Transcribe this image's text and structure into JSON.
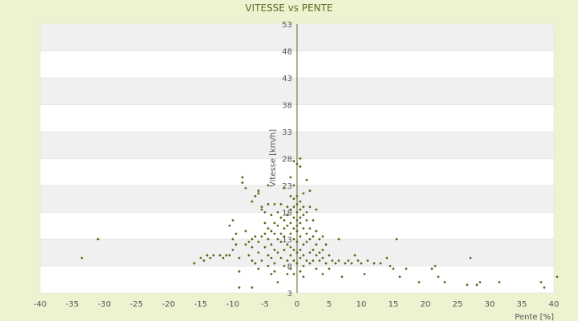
{
  "chart_data": {
    "type": "scatter",
    "title": "VITESSE vs PENTE",
    "xlabel": "Pente [%]",
    "ylabel": "Vitesse [km/h]",
    "xlim": [
      -40,
      40
    ],
    "ylim": [
      3,
      53
    ],
    "x_ticks": [
      -40,
      -35,
      -30,
      -25,
      -20,
      -15,
      -10,
      -5,
      0,
      5,
      10,
      15,
      20,
      25,
      30,
      35,
      40
    ],
    "y_ticks": [
      3,
      8,
      13,
      18,
      23,
      28,
      33,
      38,
      43,
      48,
      53
    ],
    "grid": "horizontal bands",
    "colors": {
      "page_background": "#eef2d0",
      "band_light": "#ffffff",
      "band_dark": "#f0f0f0",
      "point": "#5a6a1e",
      "axis": "#5a6a1e",
      "title": "#5a6a1e"
    },
    "points": [
      [
        -33.5,
        9.5
      ],
      [
        -31,
        13
      ],
      [
        -16,
        8.5
      ],
      [
        -15,
        9.5
      ],
      [
        -14.5,
        9
      ],
      [
        -14,
        10
      ],
      [
        -13.5,
        9.5
      ],
      [
        -13,
        10
      ],
      [
        -12,
        10
      ],
      [
        -11.5,
        9.5
      ],
      [
        -11,
        10
      ],
      [
        -10.5,
        10
      ],
      [
        -10.5,
        15.5
      ],
      [
        -10,
        16.5
      ],
      [
        -10,
        13
      ],
      [
        -10,
        11
      ],
      [
        -9.5,
        12
      ],
      [
        -9.5,
        14
      ],
      [
        -9,
        9.5
      ],
      [
        -9,
        7
      ],
      [
        -9,
        4
      ],
      [
        -8.5,
        24.5
      ],
      [
        -8.5,
        23.5
      ],
      [
        -8,
        22.5
      ],
      [
        -8,
        12
      ],
      [
        -8,
        14.5
      ],
      [
        -7.5,
        10
      ],
      [
        -7.5,
        12.5
      ],
      [
        -7,
        20
      ],
      [
        -7,
        13
      ],
      [
        -7,
        11.5
      ],
      [
        -7,
        9
      ],
      [
        -7,
        4
      ],
      [
        -6.5,
        21
      ],
      [
        -6.5,
        13.5
      ],
      [
        -6.5,
        8.5
      ],
      [
        -6,
        22
      ],
      [
        -6,
        21.5
      ],
      [
        -6,
        12.5
      ],
      [
        -6,
        10.5
      ],
      [
        -6,
        7.5
      ],
      [
        -5.5,
        19
      ],
      [
        -5.5,
        18.5
      ],
      [
        -5.5,
        13.5
      ],
      [
        -5.5,
        9
      ],
      [
        -5,
        18
      ],
      [
        -5,
        16
      ],
      [
        -5,
        14
      ],
      [
        -5,
        11.5
      ],
      [
        -4.5,
        23
      ],
      [
        -4.5,
        19.5
      ],
      [
        -4.5,
        15
      ],
      [
        -4.5,
        13
      ],
      [
        -4.5,
        10
      ],
      [
        -4.5,
        8
      ],
      [
        -4,
        17.5
      ],
      [
        -4,
        14.5
      ],
      [
        -4,
        12
      ],
      [
        -4,
        9.5
      ],
      [
        -4,
        6.5
      ],
      [
        -3.5,
        19.5
      ],
      [
        -3.5,
        16
      ],
      [
        -3.5,
        14
      ],
      [
        -3.5,
        11
      ],
      [
        -3.5,
        8.5
      ],
      [
        -3.5,
        7
      ],
      [
        -3,
        18
      ],
      [
        -3,
        15.5
      ],
      [
        -3,
        13
      ],
      [
        -3,
        10.5
      ],
      [
        -3,
        5
      ],
      [
        -2.5,
        19.5
      ],
      [
        -2.5,
        17
      ],
      [
        -2.5,
        14
      ],
      [
        -2.5,
        12.5
      ],
      [
        -2.5,
        9.5
      ],
      [
        -2,
        22.5
      ],
      [
        -2,
        16.5
      ],
      [
        -2,
        15
      ],
      [
        -2,
        13.5
      ],
      [
        -2,
        11
      ],
      [
        -2,
        8
      ],
      [
        -1.5,
        19
      ],
      [
        -1.5,
        17.5
      ],
      [
        -1.5,
        15.5
      ],
      [
        -1.5,
        12
      ],
      [
        -1.5,
        9
      ],
      [
        -1.5,
        6.5
      ],
      [
        -1,
        24.5
      ],
      [
        -1,
        21
      ],
      [
        -1,
        18.5
      ],
      [
        -1,
        16
      ],
      [
        -1,
        14
      ],
      [
        -1,
        11.5
      ],
      [
        -1,
        10
      ],
      [
        -1,
        7.5
      ],
      [
        -0.5,
        27.5
      ],
      [
        -0.5,
        23
      ],
      [
        -0.5,
        20.5
      ],
      [
        -0.5,
        19
      ],
      [
        -0.5,
        17
      ],
      [
        -0.5,
        15
      ],
      [
        -0.5,
        13
      ],
      [
        -0.5,
        11
      ],
      [
        -0.5,
        9
      ],
      [
        -0.5,
        6.5
      ],
      [
        0,
        27
      ],
      [
        0,
        21
      ],
      [
        0,
        19.5
      ],
      [
        0,
        18
      ],
      [
        0,
        16.5
      ],
      [
        0,
        15.5
      ],
      [
        0,
        14.5
      ],
      [
        0,
        12.5
      ],
      [
        0,
        10.5
      ],
      [
        0,
        8.5
      ],
      [
        0.5,
        28
      ],
      [
        0.5,
        26.5
      ],
      [
        0.5,
        20
      ],
      [
        0.5,
        18.5
      ],
      [
        0.5,
        17
      ],
      [
        0.5,
        16
      ],
      [
        0.5,
        13.5
      ],
      [
        0.5,
        11
      ],
      [
        0.5,
        9.5
      ],
      [
        0.5,
        7
      ],
      [
        1,
        21.5
      ],
      [
        1,
        19
      ],
      [
        1,
        17.5
      ],
      [
        1,
        15
      ],
      [
        1,
        12
      ],
      [
        1,
        10
      ],
      [
        1,
        8
      ],
      [
        1,
        6
      ],
      [
        1.5,
        24
      ],
      [
        1.5,
        18
      ],
      [
        1.5,
        16.5
      ],
      [
        1.5,
        14
      ],
      [
        1.5,
        12.5
      ],
      [
        1.5,
        9
      ],
      [
        2,
        22
      ],
      [
        2,
        19
      ],
      [
        2,
        15
      ],
      [
        2,
        13
      ],
      [
        2,
        10.5
      ],
      [
        2,
        8.5
      ],
      [
        2.5,
        16.5
      ],
      [
        2.5,
        13.5
      ],
      [
        2.5,
        11
      ],
      [
        2.5,
        9
      ],
      [
        3,
        18.5
      ],
      [
        3,
        14.5
      ],
      [
        3,
        12
      ],
      [
        3,
        10
      ],
      [
        3,
        7.5
      ],
      [
        3.5,
        13
      ],
      [
        3.5,
        10.5
      ],
      [
        3.5,
        9
      ],
      [
        4,
        13.5
      ],
      [
        4,
        11
      ],
      [
        4,
        9.5
      ],
      [
        4,
        6.5
      ],
      [
        4.5,
        12
      ],
      [
        4.5,
        8.5
      ],
      [
        5,
        10
      ],
      [
        5,
        7.5
      ],
      [
        5.5,
        9
      ],
      [
        6,
        8.5
      ],
      [
        6.5,
        9
      ],
      [
        6.5,
        13
      ],
      [
        7,
        6
      ],
      [
        7.5,
        8.5
      ],
      [
        8,
        9
      ],
      [
        8.5,
        8.5
      ],
      [
        9,
        10
      ],
      [
        9.5,
        9
      ],
      [
        10,
        8.5
      ],
      [
        10.5,
        6.5
      ],
      [
        11,
        9
      ],
      [
        12,
        8.5
      ],
      [
        13,
        8.5
      ],
      [
        14,
        9.5
      ],
      [
        14.5,
        8
      ],
      [
        15,
        7.5
      ],
      [
        15.5,
        13
      ],
      [
        16,
        6
      ],
      [
        17,
        7.5
      ],
      [
        19,
        5
      ],
      [
        21,
        7.5
      ],
      [
        21.5,
        8
      ],
      [
        22,
        6
      ],
      [
        23,
        5
      ],
      [
        26.5,
        4.5
      ],
      [
        27,
        9.5
      ],
      [
        28,
        4.5
      ],
      [
        28.5,
        5
      ],
      [
        31.5,
        5
      ],
      [
        38,
        5
      ],
      [
        38.5,
        4
      ],
      [
        40.5,
        6
      ]
    ]
  }
}
